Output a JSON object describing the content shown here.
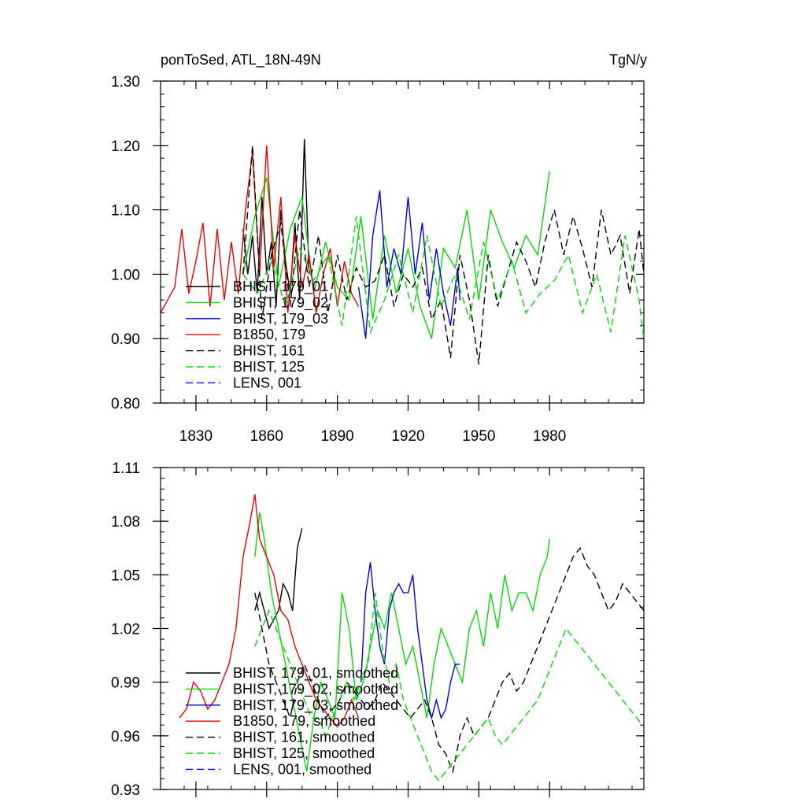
{
  "figure": {
    "title_left": "ponToSed, ATL_18N-49N",
    "title_right": "TgN/y"
  },
  "chart_data": [
    {
      "type": "line",
      "panel": "top",
      "xlim": [
        1815,
        2020
      ],
      "ylim": [
        0.8,
        1.3
      ],
      "xticks": [
        1830,
        1860,
        1890,
        1920,
        1950,
        1980
      ],
      "xtick_labels": [
        "1830",
        "1860",
        "1890",
        "1920",
        "1950",
        "1980"
      ],
      "yticks": [
        0.8,
        0.9,
        1.0,
        1.1,
        1.2,
        1.3
      ],
      "ytick_labels": [
        "0.80",
        "0.90",
        "1.00",
        "1.10",
        "1.20",
        "1.30"
      ],
      "legend_position": "lower-left",
      "series": [
        {
          "name": "BHIST, 179_01",
          "color": "#000000",
          "dash": "solid",
          "x": [
            1850,
            1852,
            1854,
            1856,
            1858,
            1860,
            1862,
            1864,
            1866,
            1868,
            1870,
            1872,
            1874,
            1876,
            1878
          ],
          "y": [
            1.07,
            1.0,
            1.06,
            0.97,
            1.12,
            1.0,
            1.05,
            0.95,
            1.1,
            1.02,
            0.97,
            1.08,
            0.96,
            1.21,
            1.0
          ]
        },
        {
          "name": "BHIST, 179_02",
          "color": "#00dd00",
          "dash": "solid",
          "x": [
            1850,
            1855,
            1860,
            1865,
            1870,
            1875,
            1880,
            1885,
            1890,
            1895,
            1900,
            1905,
            1910,
            1915,
            1920,
            1925,
            1930,
            1935,
            1940,
            1945,
            1950,
            1955,
            1960,
            1965,
            1970,
            1975,
            1980
          ],
          "y": [
            1.0,
            1.09,
            1.15,
            0.98,
            1.07,
            1.12,
            0.97,
            1.05,
            0.98,
            0.96,
            1.09,
            0.93,
            1.06,
            0.97,
            1.04,
            0.95,
            0.9,
            1.04,
            1.01,
            1.1,
            0.96,
            1.1,
            1.05,
            1.01,
            1.06,
            1.03,
            1.16
          ]
        },
        {
          "name": "BHIST, 179_03",
          "color": "#0000dd",
          "dash": "solid",
          "x": [
            1899,
            1902,
            1905,
            1908,
            1911,
            1914,
            1917,
            1920,
            1923,
            1926,
            1929,
            1932,
            1935,
            1938,
            1941,
            1942
          ],
          "y": [
            0.98,
            0.9,
            1.06,
            1.13,
            0.98,
            1.04,
            1.0,
            1.12,
            1.0,
            1.08,
            0.96,
            1.04,
            0.97,
            0.92,
            1.01,
            0.96
          ]
        },
        {
          "name": "B1850, 179",
          "color": "#ee0000",
          "dash": "solid",
          "x": [
            1815,
            1818,
            1821,
            1824,
            1827,
            1830,
            1833,
            1836,
            1839,
            1842,
            1845,
            1848,
            1851,
            1854,
            1857,
            1860,
            1863,
            1866,
            1869,
            1872,
            1875,
            1878,
            1881,
            1884,
            1887,
            1890,
            1893,
            1896,
            1899
          ],
          "y": [
            0.94,
            0.96,
            0.98,
            1.07,
            0.97,
            1.02,
            1.08,
            0.95,
            1.07,
            0.96,
            1.05,
            0.97,
            1.1,
            1.19,
            1.0,
            1.2,
            1.01,
            1.12,
            0.94,
            1.06,
            0.98,
            1.03,
            0.94,
            1.0,
            1.04,
            0.95,
            1.02,
            0.97,
            0.95
          ]
        },
        {
          "name": "BHIST, 161",
          "color": "#000000",
          "dash": "dashed",
          "x": [
            1850,
            1854,
            1858,
            1862,
            1866,
            1870,
            1874,
            1878,
            1882,
            1886,
            1890,
            1894,
            1898,
            1902,
            1906,
            1910,
            1914,
            1918,
            1922,
            1926,
            1930,
            1934,
            1938,
            1942,
            1946,
            1950,
            1954,
            1958,
            1962,
            1966,
            1970,
            1974,
            1978,
            1982,
            1986,
            1990,
            1994,
            1998,
            2002,
            2006,
            2010,
            2014,
            2018,
            2020
          ],
          "y": [
            1.0,
            1.2,
            0.93,
            1.03,
            1.08,
            0.95,
            1.1,
            0.98,
            1.06,
            0.94,
            1.03,
            0.96,
            1.01,
            0.98,
            0.99,
            1.03,
            0.95,
            1.0,
            0.98,
            1.01,
            0.93,
            0.96,
            0.87,
            1.03,
            0.96,
            0.86,
            1.03,
            0.95,
            1.0,
            1.05,
            1.02,
            0.98,
            1.05,
            1.1,
            1.03,
            1.09,
            1.04,
            0.98,
            1.1,
            1.03,
            1.06,
            0.97,
            1.07,
            1.0
          ]
        },
        {
          "name": "BHIST, 125",
          "color": "#00dd00",
          "dash": "dashed",
          "x": [
            1850,
            1856,
            1862,
            1868,
            1874,
            1880,
            1886,
            1892,
            1898,
            1904,
            1910,
            1916,
            1922,
            1928,
            1934,
            1940,
            1946,
            1952,
            1958,
            1964,
            1970,
            1976,
            1982,
            1988,
            1994,
            2000,
            2006,
            2012,
            2018,
            2020
          ],
          "y": [
            1.0,
            0.97,
            1.02,
            0.95,
            1.04,
            0.99,
            1.03,
            0.92,
            1.09,
            0.91,
            0.96,
            1.03,
            0.94,
            1.06,
            0.95,
            1.0,
            0.93,
            1.05,
            0.96,
            1.02,
            0.94,
            0.97,
            0.99,
            1.03,
            0.94,
            1.0,
            0.91,
            1.06,
            0.96,
            0.9
          ]
        },
        {
          "name": "LENS, 001",
          "color": "#0000dd",
          "dash": "dashed",
          "x": [],
          "y": []
        }
      ]
    },
    {
      "type": "line",
      "panel": "bottom",
      "xlim": [
        1815,
        2020
      ],
      "ylim": [
        0.93,
        1.11
      ],
      "xticks": [
        1830,
        1860,
        1890,
        1920,
        1950,
        1980
      ],
      "xtick_labels": [],
      "yticks": [
        0.93,
        0.96,
        0.99,
        1.02,
        1.05,
        1.08,
        1.11
      ],
      "ytick_labels": [
        "0.93",
        "0.96",
        "0.99",
        "1.02",
        "1.05",
        "1.08",
        "1.11"
      ],
      "legend_position": "lower-left",
      "series": [
        {
          "name": "BHIST, 179_01, smoothed",
          "color": "#000000",
          "dash": "solid",
          "x": [
            1855,
            1857,
            1859,
            1861,
            1863,
            1865,
            1867,
            1869,
            1871,
            1873,
            1875
          ],
          "y": [
            1.03,
            1.04,
            1.03,
            1.02,
            1.025,
            1.03,
            1.045,
            1.04,
            1.03,
            1.065,
            1.076
          ]
        },
        {
          "name": "BHIST, 179_02, smoothed",
          "color": "#00dd00",
          "dash": "solid",
          "x": [
            1855,
            1857,
            1859,
            1862,
            1865,
            1868,
            1871,
            1874,
            1877,
            1880,
            1883,
            1886,
            1889,
            1892,
            1895,
            1898,
            1901,
            1904,
            1907,
            1910,
            1913,
            1916,
            1919,
            1922,
            1925,
            1928,
            1931,
            1934,
            1937,
            1940,
            1943,
            1946,
            1949,
            1952,
            1955,
            1958,
            1961,
            1964,
            1967,
            1970,
            1973,
            1976,
            1979,
            1980
          ],
          "y": [
            1.06,
            1.085,
            1.07,
            1.04,
            1.02,
            1.0,
            0.98,
            0.96,
            0.94,
            0.97,
            0.99,
            0.98,
            0.97,
            1.04,
            1.02,
            0.98,
            0.99,
            1.01,
            1.03,
            1.02,
            1.04,
            1.02,
            1.0,
            1.01,
            0.99,
            0.97,
            1.0,
            1.02,
            1.01,
            1.0,
            0.99,
            1.02,
            1.03,
            1.01,
            1.04,
            1.02,
            1.05,
            1.03,
            1.04,
            1.04,
            1.03,
            1.05,
            1.06,
            1.07
          ]
        },
        {
          "name": "BHIST, 179_03, smoothed",
          "color": "#0000dd",
          "dash": "solid",
          "x": [
            1900,
            1902,
            1904,
            1906,
            1908,
            1910,
            1912,
            1914,
            1916,
            1918,
            1920,
            1922,
            1924,
            1926,
            1928,
            1930,
            1932,
            1934,
            1936,
            1938,
            1940,
            1942
          ],
          "y": [
            0.99,
            1.04,
            1.057,
            1.03,
            1.01,
            1.0,
            1.03,
            1.04,
            1.045,
            1.04,
            1.04,
            1.05,
            1.02,
            1.0,
            0.98,
            0.97,
            0.98,
            0.97,
            0.975,
            0.99,
            1.0,
            1.0
          ]
        },
        {
          "name": "B1850, 179, smoothed",
          "color": "#ee0000",
          "dash": "solid",
          "x": [
            1823,
            1826,
            1829,
            1832,
            1835,
            1838,
            1841,
            1844,
            1847,
            1850,
            1853,
            1855,
            1857,
            1860,
            1863,
            1866,
            1869,
            1872,
            1875,
            1878,
            1881,
            1884,
            1887,
            1890,
            1893,
            1896,
            1899
          ],
          "y": [
            0.97,
            0.975,
            0.99,
            0.985,
            0.975,
            0.98,
            0.99,
            1.0,
            1.02,
            1.06,
            1.08,
            1.095,
            1.07,
            1.06,
            1.05,
            1.03,
            1.025,
            1.01,
            1.0,
            0.99,
            0.98,
            0.975,
            0.97,
            0.965,
            0.97,
            0.98,
            0.97
          ]
        },
        {
          "name": "BHIST, 161, smoothed",
          "color": "#000000",
          "dash": "dashed",
          "x": [
            1855,
            1858,
            1861,
            1864,
            1867,
            1870,
            1873,
            1876,
            1879,
            1882,
            1885,
            1888,
            1891,
            1894,
            1897,
            1900,
            1903,
            1906,
            1909,
            1912,
            1915,
            1918,
            1921,
            1924,
            1927,
            1930,
            1933,
            1936,
            1939,
            1942,
            1945,
            1948,
            1951,
            1954,
            1957,
            1960,
            1963,
            1966,
            1969,
            1972,
            1975,
            1978,
            1981,
            1984,
            1987,
            1990,
            1993,
            1996,
            1999,
            2002,
            2005,
            2008,
            2011,
            2014,
            2017,
            2020
          ],
          "y": [
            1.04,
            1.02,
            1.0,
            0.99,
            0.98,
            0.97,
            0.99,
            1.0,
            0.99,
            0.98,
            0.97,
            0.975,
            0.98,
            0.99,
            0.985,
            0.98,
            0.975,
            0.98,
            0.99,
            0.985,
            0.98,
            0.975,
            0.97,
            0.975,
            0.98,
            0.97,
            0.955,
            0.95,
            0.94,
            0.96,
            0.97,
            0.96,
            0.965,
            0.97,
            0.98,
            0.99,
            0.995,
            0.985,
            0.99,
            1.0,
            1.01,
            1.02,
            1.03,
            1.04,
            1.05,
            1.06,
            1.065,
            1.055,
            1.05,
            1.04,
            1.03,
            1.035,
            1.045,
            1.04,
            1.035,
            1.03
          ]
        },
        {
          "name": "BHIST, 125, smoothed",
          "color": "#00dd00",
          "dash": "dashed",
          "x": [
            1855,
            1858,
            1861,
            1864,
            1867,
            1870,
            1873,
            1876,
            1879,
            1882,
            1885,
            1888,
            1891,
            1894,
            1897,
            1900,
            1903,
            1906,
            1909,
            1912,
            1915,
            1918,
            1921,
            1924,
            1927,
            1930,
            1933,
            1936,
            1939,
            1942,
            1945,
            1948,
            1951,
            1954,
            1957,
            1960,
            1963,
            1966,
            1969,
            1972,
            1975,
            1978,
            1981,
            1984,
            1987,
            1990,
            1993,
            1996,
            1999,
            2002,
            2005,
            2008,
            2011,
            2014,
            2017,
            2020
          ],
          "y": [
            1.01,
            1.02,
            1.03,
            1.02,
            1.01,
            1.0,
            0.99,
            0.98,
            0.97,
            0.97,
            0.96,
            0.97,
            0.98,
            0.99,
            0.98,
            0.99,
            1.0,
            1.04,
            1.01,
            0.99,
            1.0,
            0.98,
            0.97,
            0.96,
            0.95,
            0.94,
            0.935,
            0.94,
            0.945,
            0.95,
            0.955,
            0.96,
            0.965,
            0.97,
            0.96,
            0.955,
            0.96,
            0.965,
            0.97,
            0.975,
            0.98,
            0.99,
            1.0,
            1.01,
            1.02,
            1.015,
            1.01,
            1.005,
            1.0,
            0.995,
            0.99,
            0.985,
            0.98,
            0.975,
            0.97,
            0.965
          ]
        },
        {
          "name": "LENS, 001, smoothed",
          "color": "#0000dd",
          "dash": "dashed",
          "x": [],
          "y": []
        }
      ]
    }
  ]
}
